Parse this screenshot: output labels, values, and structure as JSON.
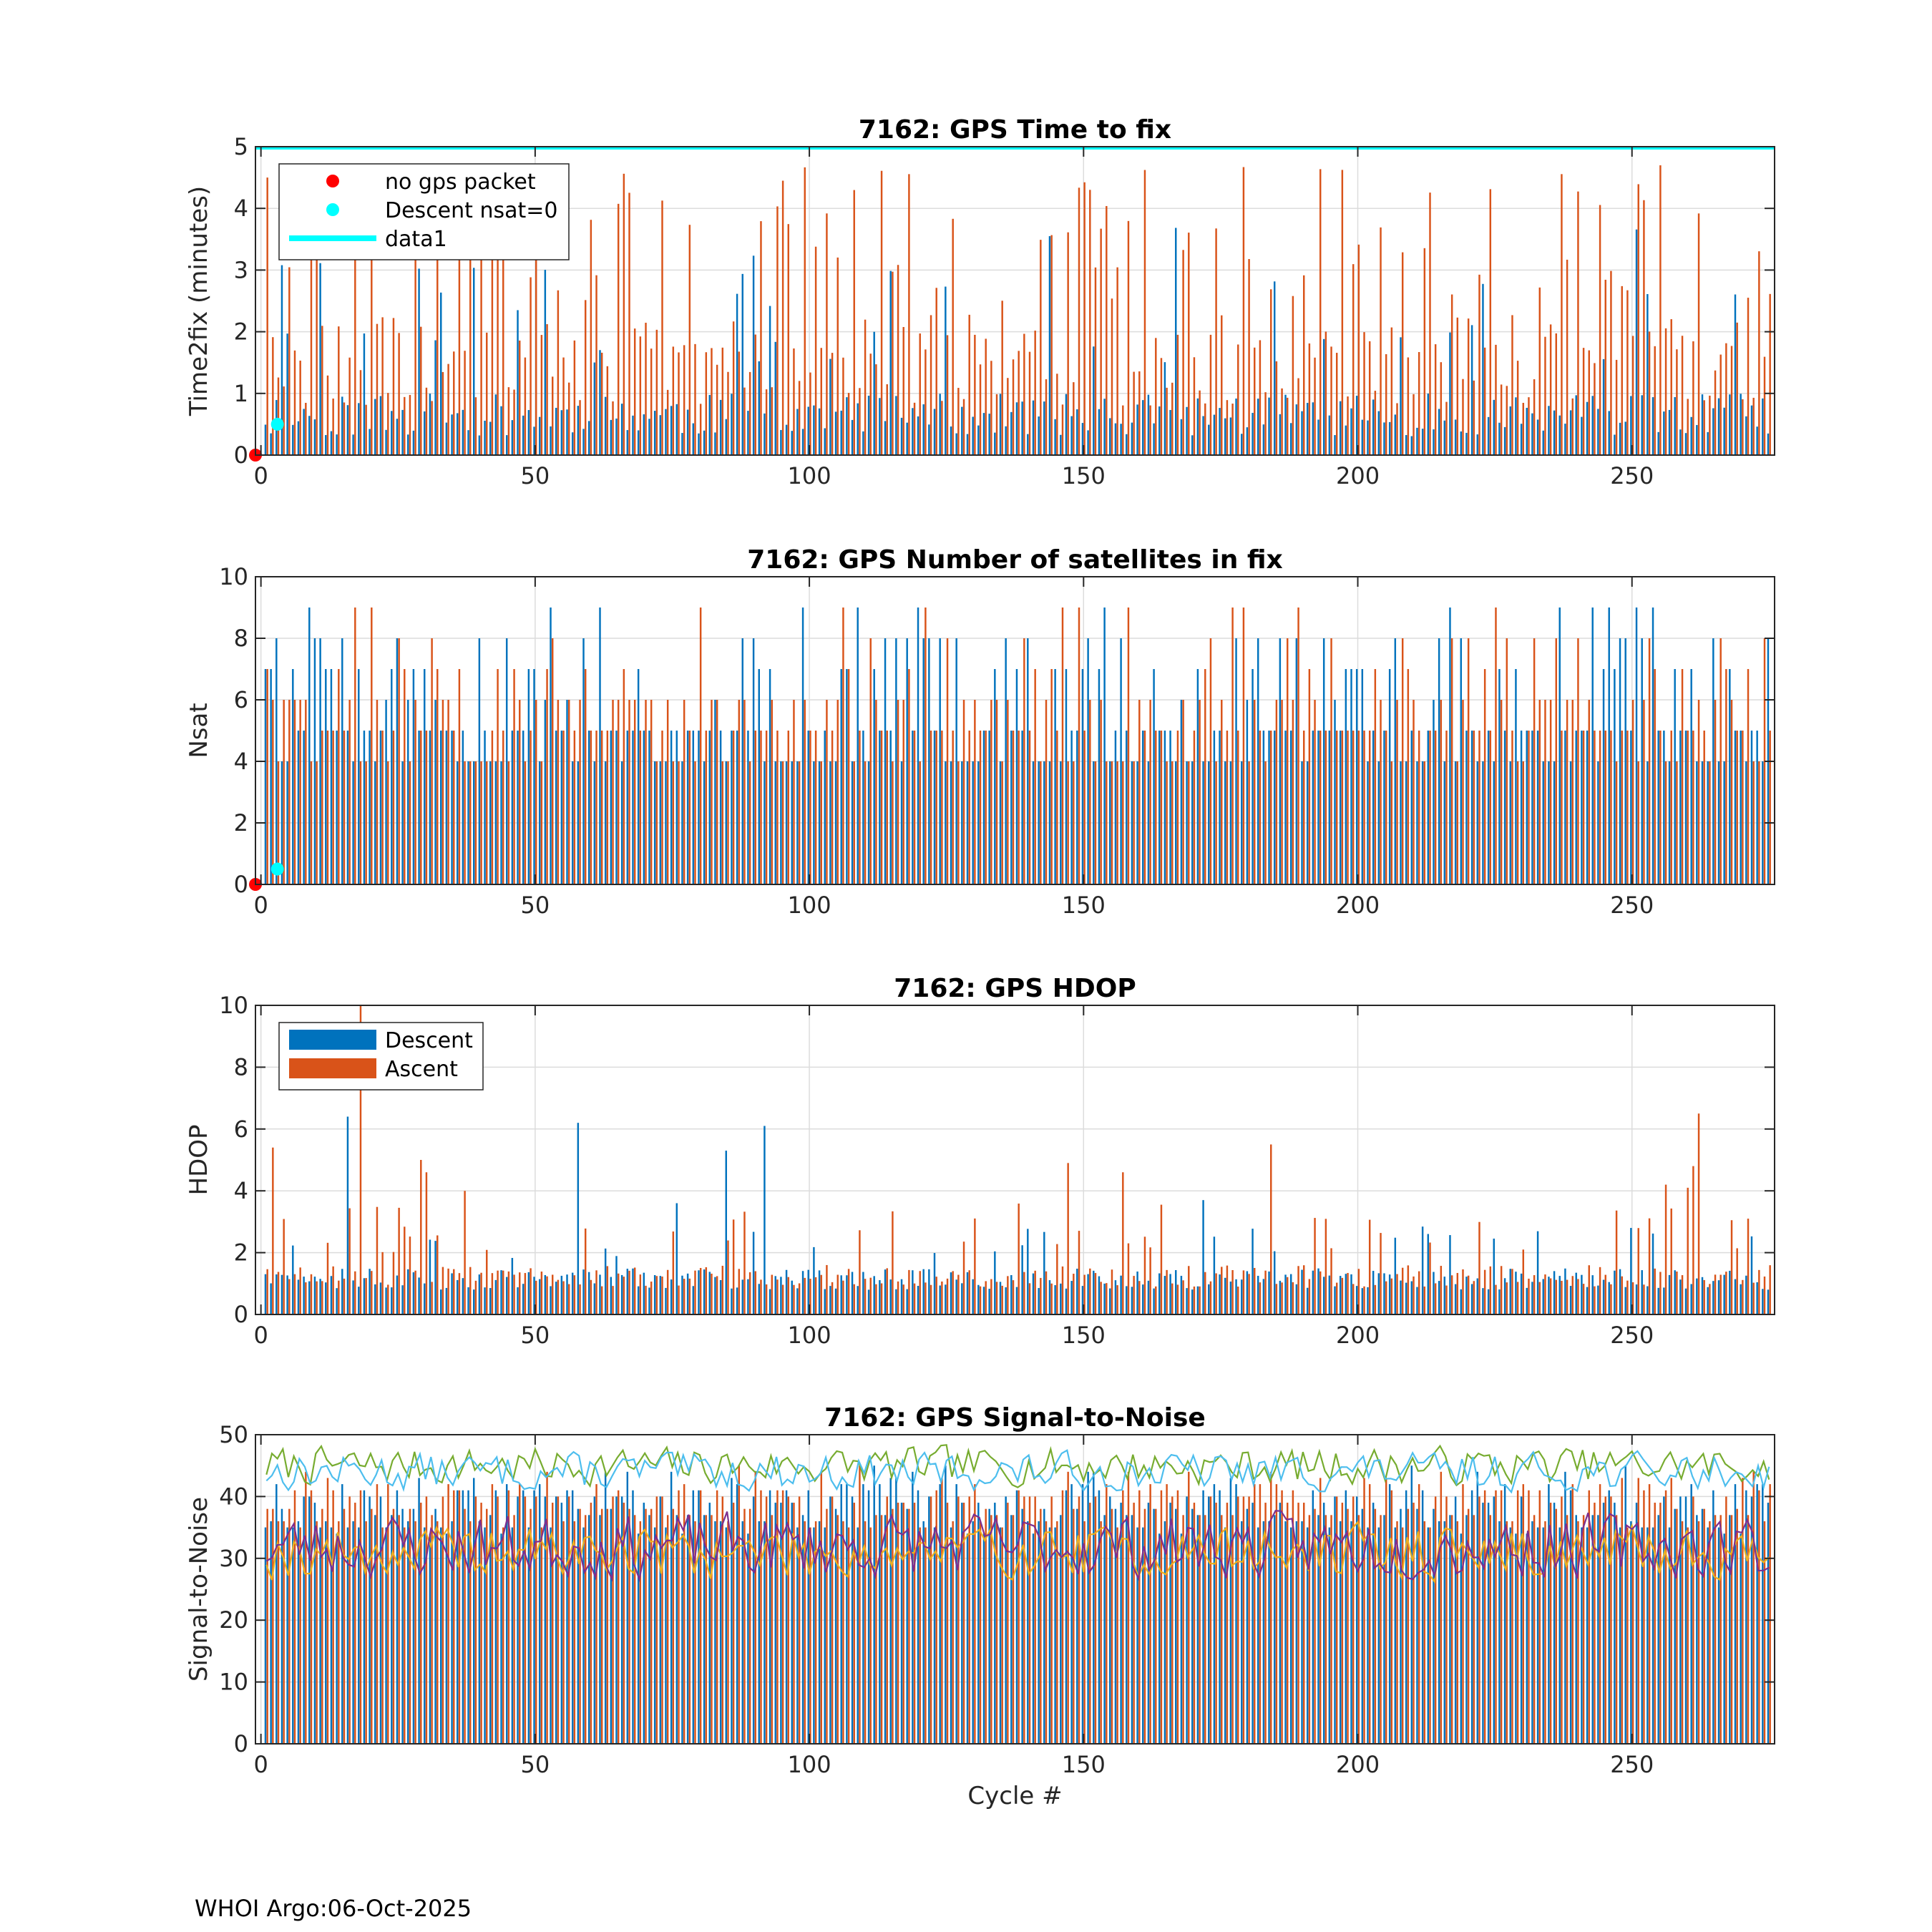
{
  "footer": "WHOI Argo:06-Oct-2025",
  "colors": {
    "descent": "#0072BD",
    "ascent": "#D95319",
    "cyan": "#00FFFF",
    "red": "#FF0000",
    "snr_yellow": "#EDB120",
    "snr_purple": "#7E2F8E",
    "snr_green": "#77AC30",
    "snr_lightblue": "#4DBEEE",
    "grid": "#DCDCDC"
  },
  "chart_data": [
    {
      "type": "bar",
      "title": "7162: GPS Time to fix",
      "xlabel": "",
      "ylabel": "Time2fix (minutes)",
      "xlim": [
        -1,
        276
      ],
      "ylim": [
        0,
        5
      ],
      "xticks": [
        0,
        50,
        100,
        150,
        200,
        250
      ],
      "yticks": [
        0,
        1,
        2,
        3,
        4,
        5
      ],
      "grid": true,
      "legend_position": "top-left",
      "legend": [
        {
          "label": "no gps packet",
          "kind": "marker",
          "color": "#FF0000"
        },
        {
          "label": "Descent nsat=0",
          "kind": "marker",
          "color": "#00FFFF"
        },
        {
          "label": "data1",
          "kind": "line",
          "color": "#00FFFF"
        }
      ],
      "x_range": [
        1,
        275
      ],
      "series": [
        {
          "kind": "bars",
          "group": "descent",
          "gen": {
            "seed": 11,
            "base": [
              0.3,
              1.0
            ],
            "peak": [
              1.5,
              3.7
            ],
            "peak_prob": 0.18
          }
        },
        {
          "kind": "bars",
          "group": "ascent",
          "gen": {
            "seed": 29,
            "base": [
              0.8,
              2.3
            ],
            "peak": [
              2.5,
              4.7
            ],
            "peak_prob": 0.35
          }
        },
        {
          "kind": "hline",
          "name": "data1",
          "y": 5,
          "color": "#00FFFF"
        },
        {
          "kind": "points",
          "name": "no gps packet",
          "color": "#FF0000",
          "points": [
            [
              -1,
              0
            ]
          ]
        },
        {
          "kind": "points",
          "name": "Descent nsat=0",
          "color": "#00FFFF",
          "points": [
            [
              3,
              0.5
            ]
          ]
        }
      ]
    },
    {
      "type": "bar",
      "title": "7162: GPS Number of satellites in fix",
      "xlabel": "",
      "ylabel": "Nsat",
      "xlim": [
        -1,
        276
      ],
      "ylim": [
        0,
        10
      ],
      "xticks": [
        0,
        50,
        100,
        150,
        200,
        250
      ],
      "yticks": [
        0,
        2,
        4,
        6,
        8,
        10
      ],
      "grid": true,
      "x_range": [
        1,
        275
      ],
      "series": [
        {
          "kind": "bars",
          "group": "descent",
          "gen": {
            "seed": 43,
            "base": [
              4,
              5
            ],
            "peak": [
              6,
              9
            ],
            "peak_prob": 0.35,
            "integer": true
          }
        },
        {
          "kind": "bars",
          "group": "ascent",
          "gen": {
            "seed": 57,
            "base": [
              4,
              6
            ],
            "peak": [
              6,
              9
            ],
            "peak_prob": 0.3,
            "integer": true
          }
        },
        {
          "kind": "points",
          "name": "no gps packet",
          "color": "#FF0000",
          "points": [
            [
              -1,
              0
            ]
          ]
        },
        {
          "kind": "points",
          "name": "Descent nsat=0",
          "color": "#00FFFF",
          "points": [
            [
              3,
              0.5
            ]
          ]
        }
      ]
    },
    {
      "type": "bar",
      "title": "7162: GPS HDOP",
      "xlabel": "",
      "ylabel": "HDOP",
      "xlim": [
        -1,
        276
      ],
      "ylim": [
        0,
        10
      ],
      "xticks": [
        0,
        50,
        100,
        150,
        200,
        250
      ],
      "yticks": [
        0,
        2,
        4,
        6,
        8,
        10
      ],
      "grid": true,
      "legend_position": "top-left",
      "legend": [
        {
          "label": "Descent",
          "kind": "patch",
          "color": "#0072BD"
        },
        {
          "label": "Ascent",
          "kind": "patch",
          "color": "#D95319"
        }
      ],
      "x_range": [
        1,
        275
      ],
      "series": [
        {
          "kind": "bars",
          "group": "descent",
          "gen": {
            "seed": 71,
            "base": [
              0.8,
              1.5
            ],
            "peak": [
              1.8,
              3.0
            ],
            "peak_prob": 0.12
          },
          "overrides": [
            [
              16,
              6.4
            ],
            [
              58,
              6.2
            ],
            [
              85,
              5.3
            ],
            [
              92,
              6.1
            ],
            [
              76,
              3.6
            ],
            [
              172,
              3.7
            ],
            [
              250,
              2.8
            ]
          ]
        },
        {
          "kind": "bars",
          "group": "ascent",
          "gen": {
            "seed": 83,
            "base": [
              0.9,
              1.6
            ],
            "peak": [
              2.0,
              3.6
            ],
            "peak_prob": 0.14
          },
          "overrides": [
            [
              2,
              5.4
            ],
            [
              18,
              10.0
            ],
            [
              29,
              5.0
            ],
            [
              30,
              4.6
            ],
            [
              37,
              4.0
            ],
            [
              147,
              4.9
            ],
            [
              157,
              4.6
            ],
            [
              184,
              5.5
            ],
            [
              230,
              2.1
            ],
            [
              262,
              6.5
            ],
            [
              261,
              4.8
            ],
            [
              256,
              4.2
            ],
            [
              260,
              4.1
            ]
          ]
        }
      ]
    },
    {
      "type": "bar",
      "title": "7162: GPS Signal-to-Noise",
      "xlabel": "Cycle #",
      "ylabel": "Signal-to-Noise",
      "xlim": [
        -1,
        276
      ],
      "ylim": [
        0,
        50
      ],
      "xticks": [
        0,
        50,
        100,
        150,
        200,
        250
      ],
      "yticks": [
        0,
        10,
        20,
        30,
        40,
        50
      ],
      "grid": true,
      "x_range": [
        1,
        275
      ],
      "series": [
        {
          "kind": "bars",
          "group": "descent",
          "gen": {
            "seed": 97,
            "base": [
              34,
              42
            ],
            "peak": [
              42,
              45
            ],
            "peak_prob": 0.1,
            "integer": true
          }
        },
        {
          "kind": "bars",
          "group": "ascent",
          "gen": {
            "seed": 101,
            "base": [
              35,
              42
            ],
            "peak": [
              42,
              45
            ],
            "peak_prob": 0.1,
            "integer": true
          }
        },
        {
          "kind": "line",
          "color": "#77AC30",
          "gen": {
            "seed": 7,
            "mean": 45,
            "amp": 3.5
          }
        },
        {
          "kind": "line",
          "color": "#4DBEEE",
          "gen": {
            "seed": 13,
            "mean": 44,
            "amp": 3.5
          }
        },
        {
          "kind": "line",
          "color": "#EDB120",
          "gen": {
            "seed": 19,
            "mean": 31,
            "amp": 5
          }
        },
        {
          "kind": "line",
          "color": "#7E2F8E",
          "gen": {
            "seed": 23,
            "mean": 32,
            "amp": 6
          }
        }
      ]
    }
  ]
}
